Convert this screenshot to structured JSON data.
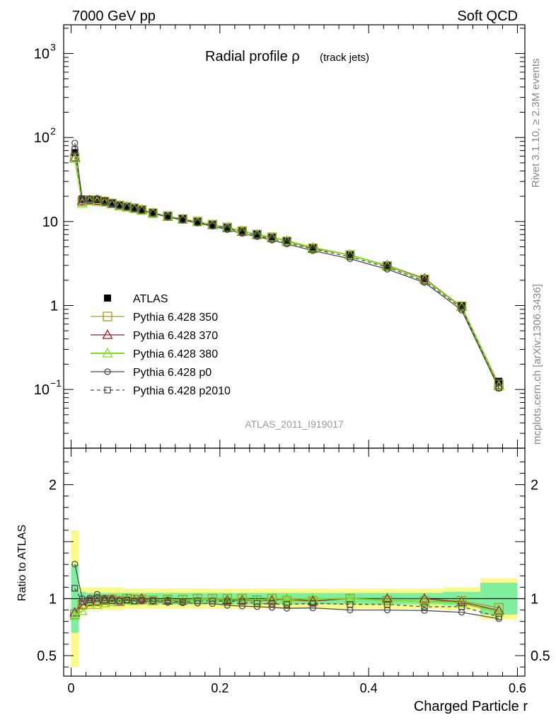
{
  "header": {
    "left": "7000 GeV pp",
    "right": "Soft QCD"
  },
  "side_text": {
    "rivet": "Rivet 3.1.10, ≥ 2.3M events",
    "mcplots": "mcplots.cern.ch [arXiv:1306.3436]"
  },
  "chart_data": {
    "type": "line",
    "title": "Radial profile ρ",
    "title_suffix": "(track jets)",
    "watermark": "ATLAS_2011_I919017",
    "xlabel": "Charged Particle r",
    "ylabel_ratio": "Ratio to ATLAS",
    "xlim": [
      -0.01,
      0.61
    ],
    "ylim_main": [
      0.02,
      2200
    ],
    "ylim_ratio": [
      0.32,
      2.32
    ],
    "yscale_main": "log",
    "x_ticks": [
      "0",
      "0.2",
      "0.4",
      "0.6"
    ],
    "y_ticks_main": [
      "10^-1",
      "1",
      "10",
      "10^2",
      "10^3"
    ],
    "y_ticks_ratio": [
      "0.5",
      "1",
      "2"
    ],
    "legend_position": "lower-left",
    "x": [
      0.005,
      0.015,
      0.025,
      0.035,
      0.045,
      0.055,
      0.065,
      0.075,
      0.085,
      0.095,
      0.11,
      0.13,
      0.15,
      0.17,
      0.19,
      0.21,
      0.23,
      0.25,
      0.27,
      0.29,
      0.325,
      0.375,
      0.425,
      0.475,
      0.525,
      0.575
    ],
    "series": [
      {
        "name": "ATLAS",
        "values": [
          66,
          18.5,
          18.5,
          18.2,
          17.5,
          16.5,
          15.8,
          15.0,
          14.5,
          13.8,
          12.8,
          11.7,
          10.8,
          10.0,
          9.2,
          8.5,
          7.7,
          7.1,
          6.5,
          5.9,
          4.9,
          4.0,
          3.0,
          2.1,
          1.0,
          0.125
        ]
      },
      {
        "name": "Pythia 6.428 350",
        "values": [
          57,
          17.5,
          18.0,
          17.8,
          17.3,
          16.4,
          15.5,
          15.0,
          14.4,
          13.7,
          12.6,
          11.6,
          10.7,
          10.0,
          9.2,
          8.5,
          7.7,
          7.0,
          6.5,
          5.8,
          4.8,
          4.0,
          2.95,
          2.05,
          0.98,
          0.115
        ]
      },
      {
        "name": "Pythia 6.428 370",
        "values": [
          58,
          17.5,
          18.0,
          17.7,
          17.2,
          16.3,
          15.4,
          14.9,
          14.3,
          13.8,
          12.6,
          11.5,
          10.6,
          9.9,
          9.1,
          8.4,
          7.6,
          7.0,
          6.4,
          5.9,
          4.8,
          4.0,
          3.0,
          2.1,
          0.97,
          0.112
        ]
      },
      {
        "name": "Pythia 6.428 380",
        "values": [
          56,
          16.5,
          17.5,
          17.2,
          16.8,
          16.0,
          15.3,
          14.8,
          14.2,
          13.6,
          12.6,
          11.6,
          10.6,
          9.9,
          9.1,
          8.5,
          7.7,
          7.0,
          6.5,
          5.9,
          4.9,
          4.0,
          2.95,
          2.05,
          0.96,
          0.11
        ]
      },
      {
        "name": "Pythia 6.428 p0",
        "values": [
          86,
          18.5,
          18.6,
          18.9,
          17.6,
          16.5,
          15.5,
          14.8,
          14.2,
          13.5,
          12.5,
          11.3,
          10.4,
          9.6,
          8.8,
          8.0,
          7.2,
          6.6,
          6.0,
          5.4,
          4.5,
          3.6,
          2.7,
          1.88,
          0.88,
          0.103
        ]
      },
      {
        "name": "Pythia 6.428 p2010",
        "values": [
          72,
          18.0,
          18.3,
          18.3,
          17.3,
          16.2,
          15.5,
          14.8,
          14.2,
          13.6,
          12.6,
          11.5,
          10.5,
          9.8,
          9.0,
          8.3,
          7.5,
          6.8,
          6.2,
          5.6,
          4.7,
          3.8,
          2.85,
          1.95,
          0.93,
          0.105
        ]
      }
    ],
    "ratio_bands": {
      "x_edges": [
        0.0,
        0.01,
        0.02,
        0.03,
        0.04,
        0.05,
        0.06,
        0.07,
        0.08,
        0.09,
        0.1,
        0.12,
        0.14,
        0.16,
        0.18,
        0.2,
        0.22,
        0.24,
        0.26,
        0.28,
        0.3,
        0.35,
        0.4,
        0.45,
        0.5,
        0.55,
        0.6
      ],
      "inner": [
        0.3,
        0.06,
        0.05,
        0.05,
        0.05,
        0.05,
        0.05,
        0.05,
        0.05,
        0.05,
        0.05,
        0.05,
        0.05,
        0.05,
        0.05,
        0.05,
        0.05,
        0.05,
        0.05,
        0.05,
        0.05,
        0.05,
        0.05,
        0.05,
        0.06,
        0.14
      ],
      "outer": [
        0.6,
        0.1,
        0.1,
        0.1,
        0.1,
        0.1,
        0.1,
        0.09,
        0.09,
        0.09,
        0.09,
        0.09,
        0.09,
        0.09,
        0.09,
        0.09,
        0.09,
        0.09,
        0.09,
        0.09,
        0.09,
        0.09,
        0.09,
        0.09,
        0.1,
        0.18
      ],
      "inner_color": "#7fef9f",
      "outer_color": "#fbfb8a"
    },
    "colors": {
      "ATLAS": "#000000",
      "Pythia 6.428 350": "#9f9f1f",
      "Pythia 6.428 370": "#9f1f2f",
      "Pythia 6.428 380": "#7fdf1f",
      "Pythia 6.428 p0": "#4a4a4a",
      "Pythia 6.428 p2010": "#4a4a4a"
    }
  }
}
